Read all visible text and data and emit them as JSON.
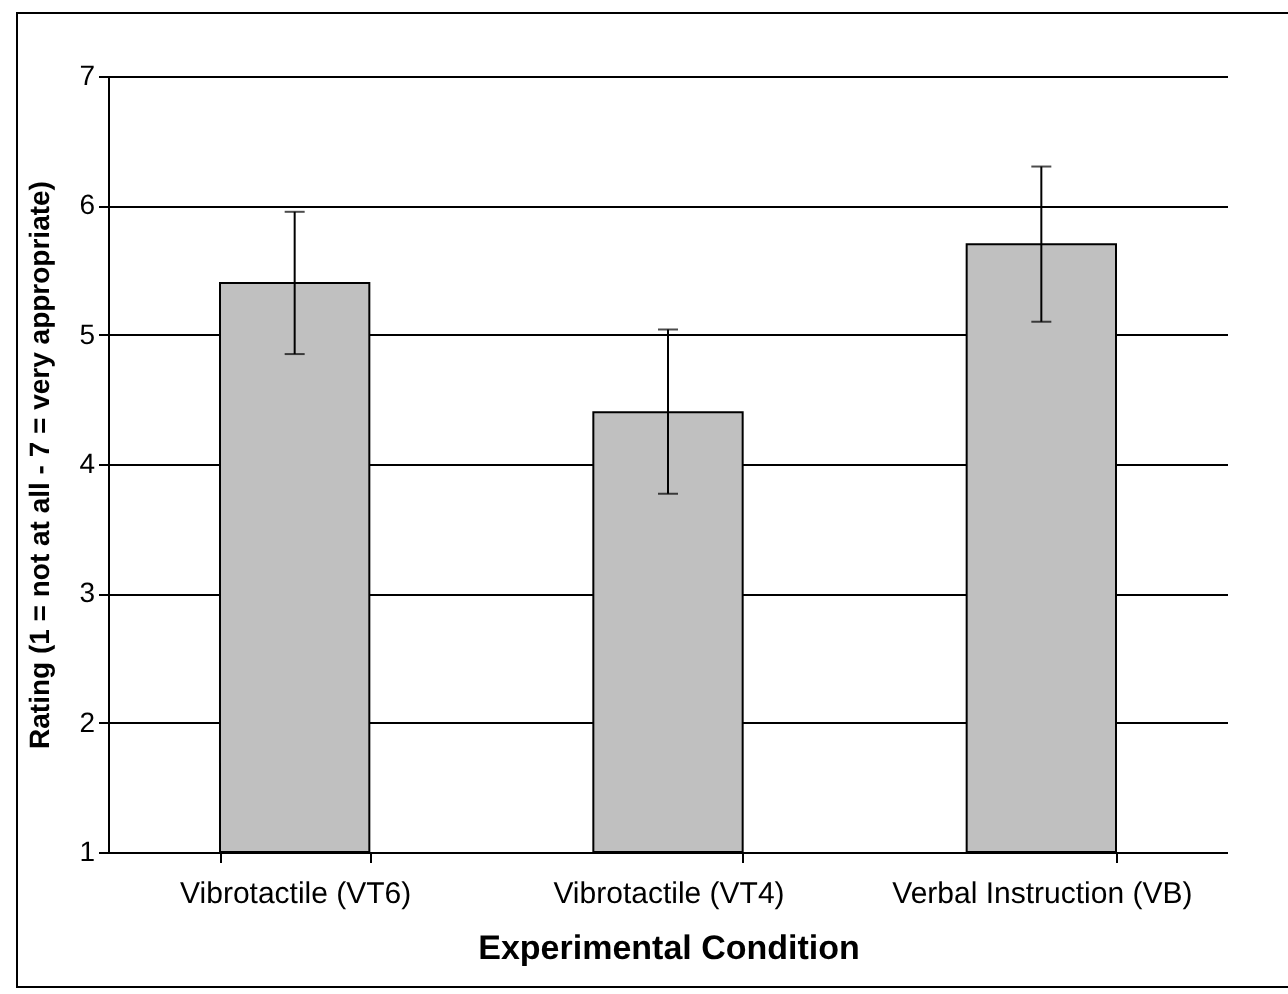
{
  "chart_data": {
    "type": "bar",
    "xlabel": "Experimental Condition",
    "ylabel": "Rating (1 = not at all - 7 = very appropriate)",
    "categories": [
      "Vibrotactile (VT6)",
      "Vibrotactile (VT4)",
      "Verbal Instruction (VB)"
    ],
    "values": [
      5.4,
      4.4,
      5.7
    ],
    "errors": [
      [
        4.85,
        5.95
      ],
      [
        3.77,
        5.04
      ],
      [
        5.1,
        6.3
      ]
    ],
    "color": "#c0c0c0",
    "ylim": [
      1,
      7
    ],
    "yticks": [
      1,
      2,
      3,
      4,
      5,
      6,
      7
    ],
    "grid": "y"
  }
}
